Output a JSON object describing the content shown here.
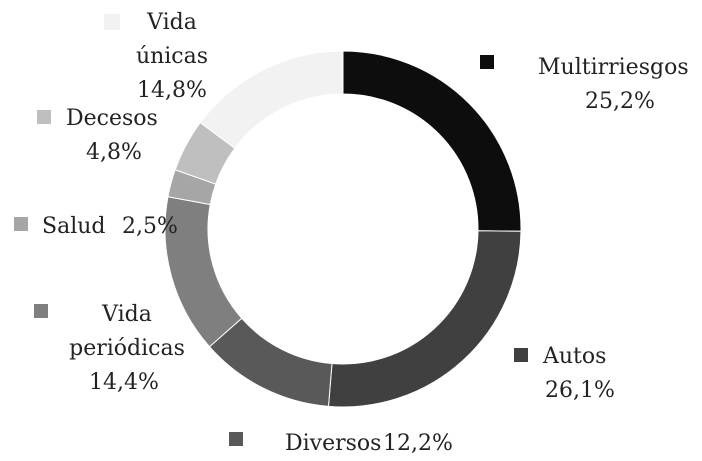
{
  "chart_data": {
    "type": "donut",
    "categories": [
      "Multirriesgos",
      "Autos",
      "Diversos",
      "Vida periódicas",
      "Salud",
      "Decesos",
      "Vida únicas"
    ],
    "values": [
      25.2,
      26.1,
      12.2,
      14.4,
      2.5,
      4.8,
      14.8
    ],
    "value_labels": [
      "25,2%",
      "26,1%",
      "12,2%",
      "14,4%",
      "2,5%",
      "4,8%",
      "14,8%"
    ],
    "colors": [
      "#0d0d0d",
      "#404040",
      "#595959",
      "#7f7f7f",
      "#a6a6a6",
      "#bfbfbf",
      "#f2f2f2"
    ]
  }
}
